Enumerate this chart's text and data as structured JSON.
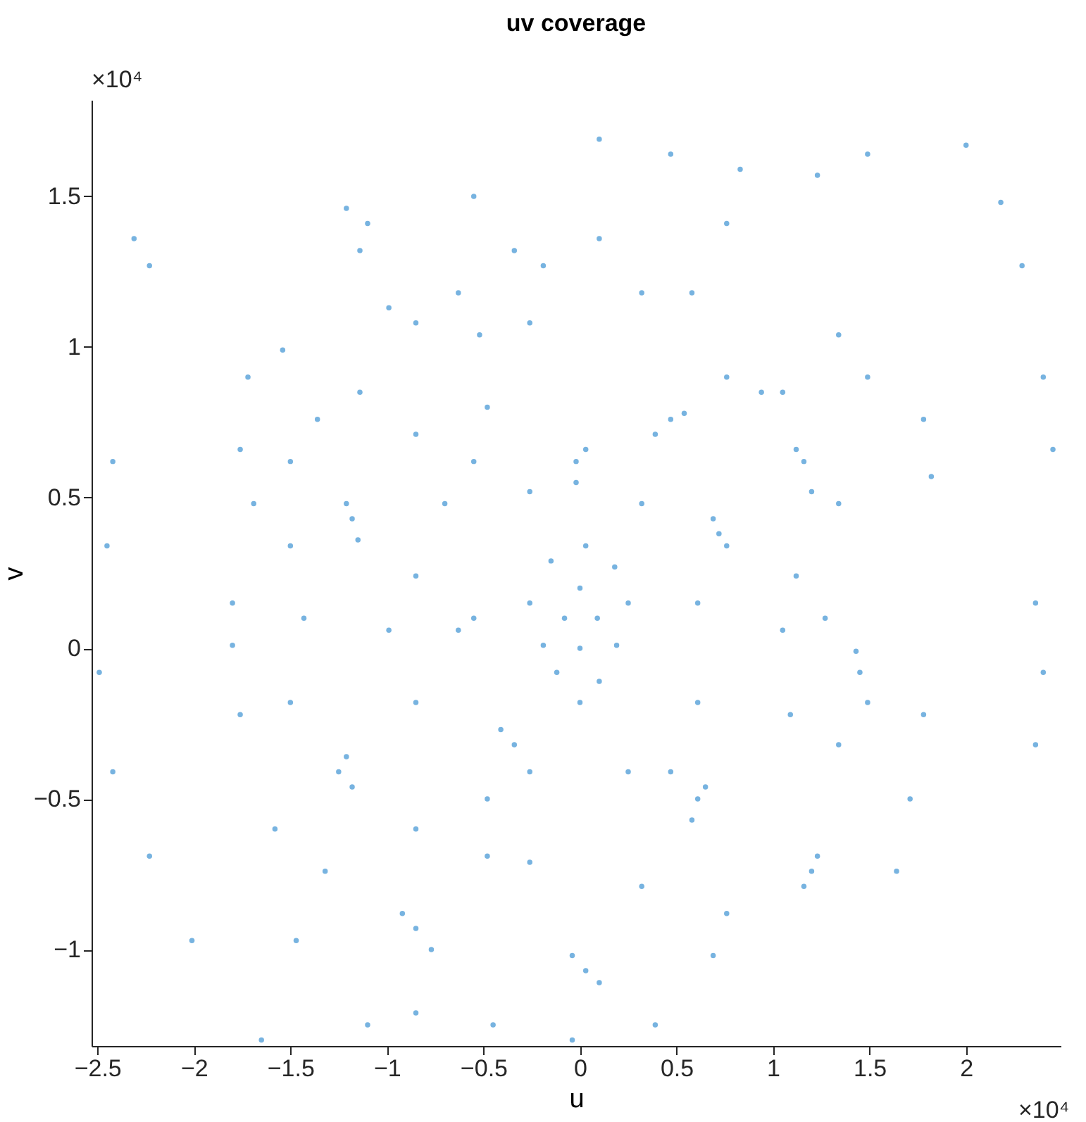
{
  "chart_data": {
    "type": "scatter",
    "title": "uv coverage",
    "xlabel": "u",
    "ylabel": "v",
    "annotations": [
      "×10⁴",
      "×10⁴"
    ],
    "xlim": [
      -2.53,
      2.49
    ],
    "ylim": [
      -1.32,
      1.82
    ],
    "xticks": [
      -2.5,
      -2,
      -1.5,
      -1,
      -0.5,
      0,
      0.5,
      1,
      1.5,
      2
    ],
    "yticks": [
      -1,
      -0.5,
      0,
      0.5,
      1,
      1.5
    ],
    "grid": false,
    "marker": "circle",
    "series": [
      {
        "color": "#77b3e0",
        "x": [
          0,
          -0.08,
          0.09,
          -0.12,
          0.1,
          0,
          0,
          -0.19,
          0.19,
          0.03,
          -0.15,
          0.18,
          -0.26,
          0.25,
          -0.02,
          -0.02,
          0.03,
          0.47,
          0.39,
          0.54,
          1.16,
          1.2,
          1.12,
          -1.18,
          -1.21,
          -1.15,
          0.72,
          0.76,
          0.69,
          1.45,
          1.43,
          1.49,
          -1.21,
          -1.25,
          -1.18,
          -0.55,
          -0.63,
          0.61,
          0.58,
          0.65,
          -0.85,
          -0.92,
          -0.77,
          1.2,
          1.16,
          1.23,
          0.03,
          -0.04,
          0.1,
          -0.41,
          -0.34,
          0.1,
          0.47,
          0.83,
          1.23,
          1.49,
          2.0,
          2.18,
          2.29,
          2.4,
          2.45,
          2.36,
          2.4,
          2.36,
          -2.31,
          -2.23,
          -2.42,
          -2.45,
          -2.49,
          -2.42,
          -2.23,
          -2.01,
          -1.65,
          -1.14,
          -1.1,
          -0.55,
          -0.34,
          -0.19,
          0.1,
          0.76,
          0.58,
          1.05,
          1.34,
          1.78,
          1.82,
          1.78,
          1.71,
          1.64,
          -1.54,
          -1.21,
          -1.72,
          -1.76,
          -1.69,
          -1.8,
          -1.8,
          -1.76,
          -1.58,
          -1.47,
          -1.1,
          -0.85,
          -0.45,
          -0.04,
          0.39,
          0.69,
          0.76,
          -0.63,
          -0.85,
          -0.99,
          -1.14,
          -1.36,
          -1.5,
          -1.5,
          -1.43,
          -1.5,
          -1.32,
          -0.85,
          -0.48,
          -0.26,
          -0.48,
          -0.85,
          -0.52,
          -0.26,
          0.32,
          0.76,
          0.94,
          1.12,
          1.05,
          1.09,
          1.34,
          1.27,
          0.47,
          0.32,
          -0.48,
          -0.85,
          -0.99,
          -0.85,
          -0.7,
          -0.55,
          -0.26,
          0.32,
          0.61,
          0.61,
          0.25,
          -0.26,
          1.49,
          1.34
        ],
        "values": [
          0,
          0.1,
          0.1,
          -0.08,
          -0.11,
          0.2,
          -0.18,
          0.01,
          0.01,
          0.34,
          0.29,
          0.27,
          0.15,
          0.15,
          0.62,
          0.55,
          0.66,
          0.76,
          0.71,
          0.78,
          0.62,
          0.52,
          0.66,
          0.43,
          0.48,
          0.36,
          0.38,
          0.34,
          0.43,
          -0.08,
          -0.01,
          -0.18,
          -0.36,
          -0.41,
          -0.46,
          0.1,
          0.06,
          -0.5,
          -0.57,
          -0.46,
          -0.93,
          -0.88,
          -1.0,
          -0.74,
          -0.79,
          -0.69,
          -1.07,
          -1.02,
          -1.11,
          -0.27,
          -0.32,
          1.69,
          1.64,
          1.59,
          1.57,
          1.64,
          1.67,
          1.48,
          1.27,
          0.9,
          0.66,
          0.15,
          -0.08,
          -0.32,
          1.36,
          1.27,
          0.62,
          0.34,
          -0.08,
          -0.41,
          -0.69,
          -0.97,
          -1.3,
          1.32,
          1.41,
          1.5,
          1.32,
          1.27,
          1.36,
          1.41,
          1.18,
          0.85,
          1.04,
          0.76,
          0.57,
          -0.22,
          -0.5,
          -0.74,
          0.99,
          1.46,
          0.9,
          0.66,
          0.48,
          0.15,
          0.01,
          -0.22,
          -0.6,
          -0.97,
          -1.25,
          -1.21,
          -1.25,
          -1.3,
          -1.25,
          -1.02,
          -0.88,
          1.18,
          1.08,
          1.13,
          0.85,
          0.76,
          0.62,
          0.34,
          0.1,
          -0.18,
          -0.74,
          -0.6,
          -0.69,
          -0.71,
          0.8,
          0.71,
          1.04,
          1.08,
          1.18,
          0.9,
          0.85,
          0.24,
          0.06,
          -0.22,
          -0.32,
          0.1,
          -0.41,
          -0.79,
          -0.5,
          -0.18,
          0.06,
          0.24,
          0.48,
          0.62,
          0.52,
          0.48,
          0.15,
          -0.18,
          -0.41,
          -0.41,
          0.9,
          0.48
        ]
      }
    ]
  }
}
